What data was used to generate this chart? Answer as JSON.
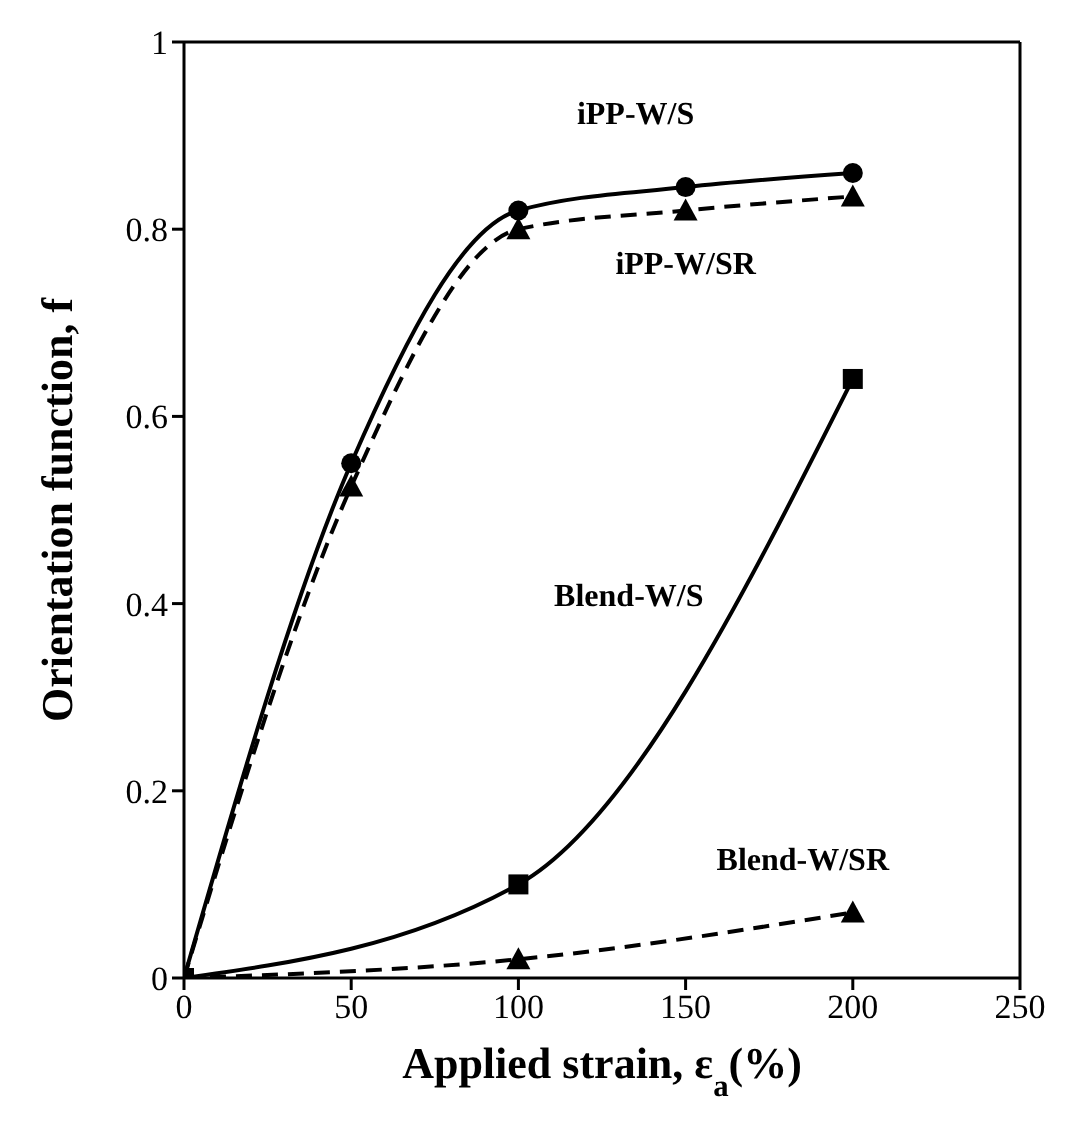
{
  "chart_data": {
    "type": "line",
    "xlabel": "Applied strain, ε$_{a}$(%)",
    "ylabel": "Orientation function, f",
    "xlim": [
      0,
      250
    ],
    "xticks": [
      0,
      50,
      100,
      150,
      200,
      250
    ],
    "ylim": [
      0,
      1
    ],
    "yticks": [
      0,
      0.2,
      0.4,
      0.6,
      0.8,
      1
    ],
    "series": [
      {
        "name": "Blend-W/S",
        "color": "#000000",
        "marker": "square",
        "line_style": "solid",
        "x": [
          0,
          100,
          200
        ],
        "values": [
          0,
          0.1,
          0.64
        ]
      },
      {
        "name": "Blend-W/SR",
        "color": "#000000",
        "marker": "triangle",
        "line_style": "dashed",
        "x": [
          0,
          100,
          200
        ],
        "values": [
          0,
          0.02,
          0.07
        ]
      },
      {
        "name": "iPP-W/S",
        "color": "#000000",
        "marker": "circle",
        "line_style": "solid",
        "x": [
          0,
          50,
          100,
          150,
          200
        ],
        "values": [
          0,
          0.55,
          0.82,
          0.845,
          0.86
        ]
      },
      {
        "name": "iPP-W/SR",
        "color": "#000000",
        "marker": "triangle",
        "line_style": "dashed",
        "x": [
          0,
          50,
          100,
          150,
          200
        ],
        "values": [
          0,
          0.525,
          0.8,
          0.82,
          0.835
        ]
      }
    ]
  }
}
